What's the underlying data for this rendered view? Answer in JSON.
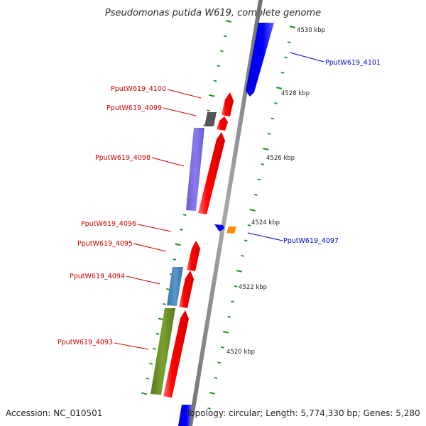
{
  "title": "Pseudomonas putida W619, complete genome",
  "footer": {
    "accession": "Accession: NC_010501",
    "topology": "Topology: circular; Length: 5,774,330 bp; Genes: 5,280"
  },
  "colors": {
    "backbone": "#888888",
    "tick": "#1f8a1f",
    "red_gene": "#ff0000",
    "blue_gene": "#0000ff",
    "purple_gene": "#7b68ee",
    "steelblue_gene": "#4682b4",
    "olive_gene": "#6b8e23",
    "gray_gene": "#555555",
    "orange_gene": "#ff8c00",
    "label_red": "#cc0000",
    "label_blue": "#0000cc"
  },
  "kbp_labels": [
    "4530 kbp",
    "4528 kbp",
    "4526 kbp",
    "4524 kbp",
    "4522 kbp",
    "4520 kbp"
  ],
  "gene_labels": [
    {
      "text": "PputW619_4101",
      "color": "blue"
    },
    {
      "text": "PputW619_4100",
      "color": "red"
    },
    {
      "text": "PputW619_4099",
      "color": "red"
    },
    {
      "text": "PputW619_4098",
      "color": "red"
    },
    {
      "text": "PputW619_4096",
      "color": "red"
    },
    {
      "text": "PputW619_4095",
      "color": "red"
    },
    {
      "text": "PputW619_4097",
      "color": "blue"
    },
    {
      "text": "PputW619_4094",
      "color": "red"
    },
    {
      "text": "PputW619_4093",
      "color": "red"
    }
  ]
}
